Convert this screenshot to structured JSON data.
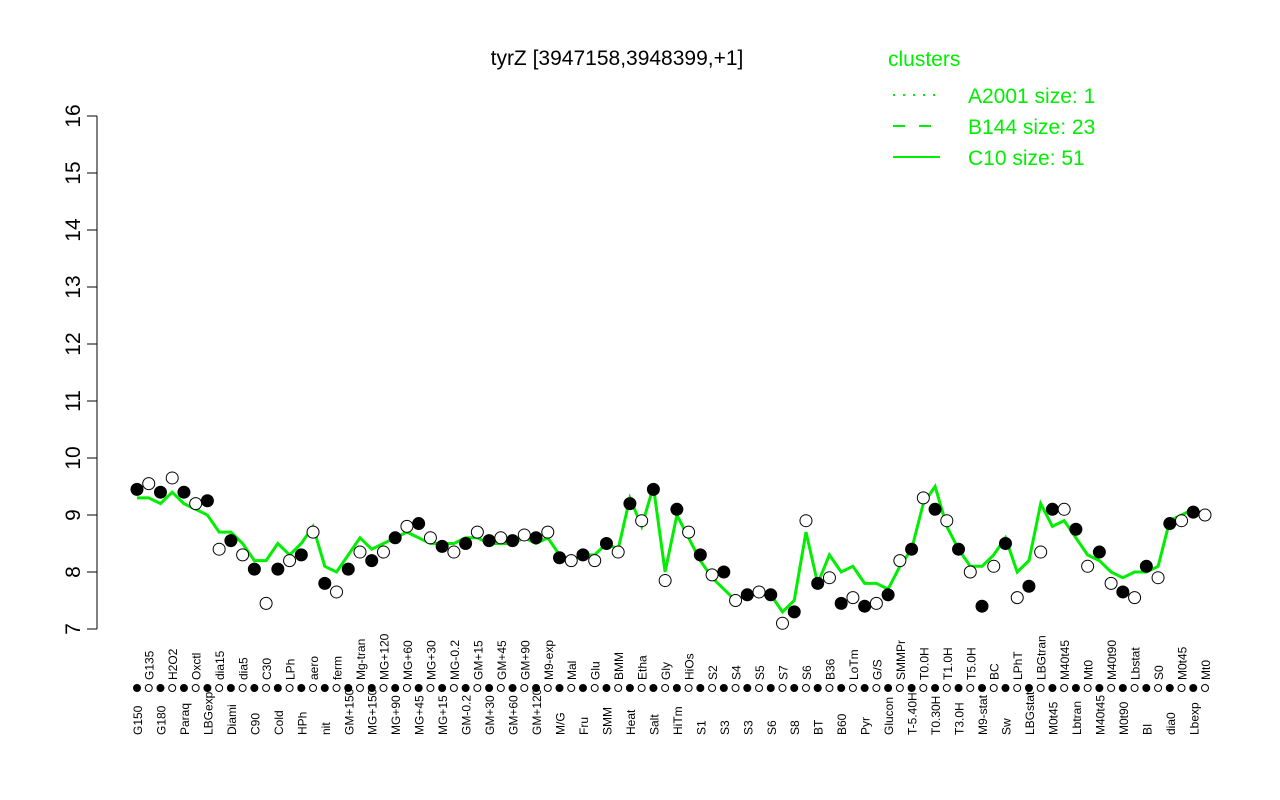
{
  "chart_data": {
    "type": "scatter",
    "title": "tyrZ [3947158,3948399,+1]",
    "xlabel": "",
    "ylabel": "",
    "ylim": [
      7,
      16
    ],
    "yticks": [
      "7",
      "8",
      "9",
      "10",
      "11",
      "12",
      "13",
      "14",
      "15",
      "16"
    ],
    "grid": false,
    "legend": {
      "title": "clusters",
      "placement": "top-right",
      "color": "#00ee00",
      "entries": [
        {
          "label": "A2001 size: 1",
          "style": "dotted"
        },
        {
          "label": "B144 size: 23",
          "style": "dashed"
        },
        {
          "label": "C10 size: 51",
          "style": "solid"
        }
      ]
    },
    "line_color": "#00ee00",
    "categories": [
      "G150",
      "G135",
      "G180",
      "H2O2",
      "Paraq",
      "Oxctl",
      "LBGexp",
      "dia15",
      "Diami",
      "dia5",
      "C90",
      "C30",
      "Cold",
      "LPh",
      "HPh",
      "aero",
      "nit",
      "ferm",
      "GM+150",
      "Mg-tran",
      "MG+150",
      "MG+120",
      "MG+90",
      "MG+60",
      "MG+45",
      "MG+30",
      "MG+15",
      "MG-0.2",
      "GM-0.2",
      "GM+15",
      "GM+30",
      "GM+45",
      "GM+60",
      "GM+90",
      "GM+120",
      "M9-exp",
      "M/G",
      "Mal",
      "Fru",
      "Glu",
      "SMM",
      "BMM",
      "Heat",
      "Etha",
      "Salt",
      "Gly",
      "HiTm",
      "HiOs",
      "S1",
      "S2",
      "S3",
      "S4",
      "S3",
      "S5",
      "S6",
      "S7",
      "S8",
      "S6",
      "BT",
      "B36",
      "B60",
      "LoTm",
      "Pyr",
      "G/S",
      "Glucon",
      "SMMPr",
      "T-5.40H",
      "T0.0H",
      "T0.30H",
      "T1.0H",
      "T3.0H",
      "T5.0H",
      "M9-stat",
      "BC",
      "Sw",
      "LPhT",
      "LBGstat",
      "LBGtran",
      "M0t45",
      "M40t45",
      "Lbtran",
      "Mt0",
      "M40t45",
      "M40t90",
      "M0t90",
      "Lbstat",
      "BI",
      "S0",
      "dia0",
      "M0t45",
      "Lbexp",
      "Mt0"
    ],
    "values": [
      9.45,
      9.55,
      9.4,
      9.65,
      9.4,
      9.2,
      9.25,
      8.4,
      8.55,
      8.3,
      8.05,
      7.45,
      8.05,
      8.2,
      8.3,
      8.7,
      7.8,
      7.65,
      8.05,
      8.35,
      8.2,
      8.35,
      8.6,
      8.8,
      8.85,
      8.6,
      8.45,
      8.35,
      8.5,
      8.7,
      8.55,
      8.6,
      8.55,
      8.65,
      8.6,
      8.7,
      8.25,
      8.2,
      8.3,
      8.2,
      8.5,
      8.35,
      9.2,
      8.9,
      9.45,
      7.85,
      9.1,
      8.7,
      8.3,
      7.95,
      8.0,
      7.5,
      7.6,
      7.65,
      7.6,
      7.1,
      7.3,
      8.9,
      7.8,
      7.9,
      7.45,
      7.55,
      7.4,
      7.45,
      7.6,
      8.2,
      8.4,
      9.3,
      9.1,
      8.9,
      8.4,
      8.0,
      7.4,
      8.1,
      8.5,
      7.55,
      7.75,
      8.35,
      9.1,
      9.1,
      8.75,
      8.1,
      8.35,
      7.8,
      7.65,
      7.55,
      8.1,
      7.9,
      8.85,
      8.9,
      9.05,
      9.0
    ],
    "series": [
      {
        "name": "C10 size: 51",
        "style": "solid",
        "values": [
          9.3,
          9.3,
          9.2,
          9.4,
          9.2,
          9.1,
          9.0,
          8.7,
          8.7,
          8.5,
          8.2,
          8.2,
          8.5,
          8.3,
          8.5,
          8.8,
          8.1,
          8.0,
          8.3,
          8.6,
          8.4,
          8.5,
          8.6,
          8.7,
          8.6,
          8.5,
          8.5,
          8.5,
          8.6,
          8.6,
          8.5,
          8.5,
          8.5,
          8.6,
          8.5,
          8.6,
          8.3,
          8.2,
          8.3,
          8.3,
          8.5,
          8.4,
          9.3,
          8.8,
          9.5,
          8.0,
          9.0,
          8.6,
          8.2,
          7.9,
          7.7,
          7.5,
          7.6,
          7.6,
          7.6,
          7.3,
          7.5,
          8.7,
          7.8,
          8.3,
          8.0,
          8.1,
          7.8,
          7.8,
          7.7,
          8.1,
          8.4,
          9.2,
          9.5,
          8.8,
          8.4,
          8.1,
          8.1,
          8.3,
          8.6,
          8.0,
          8.2,
          9.2,
          8.8,
          8.9,
          8.6,
          8.3,
          8.2,
          8.0,
          7.9,
          8.0,
          8.0,
          8.1,
          8.9,
          9.0,
          9.1,
          9.0
        ]
      }
    ]
  }
}
